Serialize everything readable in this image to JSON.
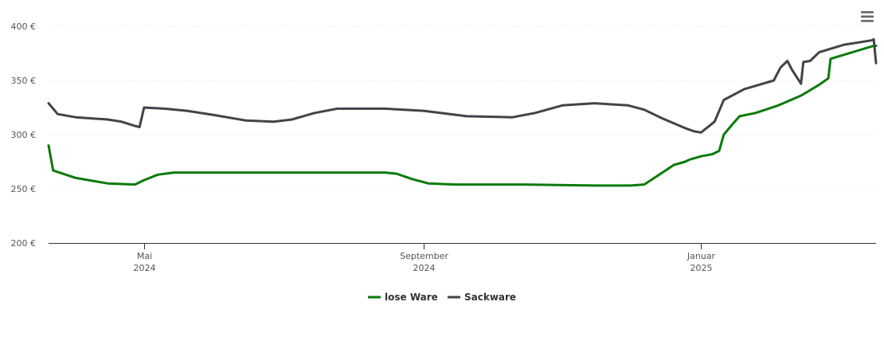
{
  "chart_data": {
    "type": "line",
    "title": "",
    "xlabel": "",
    "ylabel": "",
    "ylim": [
      200,
      400
    ],
    "y_ticks": [
      {
        "value": 200,
        "label": "200 €"
      },
      {
        "value": 250,
        "label": "250 €"
      },
      {
        "value": 300,
        "label": "300 €"
      },
      {
        "value": 350,
        "label": "350 €"
      },
      {
        "value": 400,
        "label": "400 €"
      }
    ],
    "x_range": [
      "2024-03-20",
      "2025-03-19"
    ],
    "x_ticks": [
      {
        "date": "2024-05-01",
        "line1": "Mai",
        "line2": "2024"
      },
      {
        "date": "2024-09-01",
        "line1": "September",
        "line2": "2024"
      },
      {
        "date": "2025-01-01",
        "line1": "Januar",
        "line2": "2025"
      }
    ],
    "grid": true,
    "legend_position": "bottom-center",
    "series": [
      {
        "name": "lose Ware",
        "color": "#0a7a0a",
        "points": [
          [
            "2024-03-20",
            290
          ],
          [
            "2024-03-22",
            267
          ],
          [
            "2024-04-01",
            260
          ],
          [
            "2024-04-15",
            255
          ],
          [
            "2024-04-27",
            254
          ],
          [
            "2024-05-01",
            258
          ],
          [
            "2024-05-07",
            263
          ],
          [
            "2024-05-14",
            265
          ],
          [
            "2024-06-15",
            265
          ],
          [
            "2024-07-15",
            265
          ],
          [
            "2024-08-15",
            265
          ],
          [
            "2024-08-20",
            264
          ],
          [
            "2024-08-27",
            259
          ],
          [
            "2024-09-03",
            255
          ],
          [
            "2024-09-15",
            254
          ],
          [
            "2024-10-15",
            254
          ],
          [
            "2024-11-15",
            253
          ],
          [
            "2024-12-01",
            253
          ],
          [
            "2024-12-07",
            254
          ],
          [
            "2024-12-15",
            265
          ],
          [
            "2024-12-20",
            272
          ],
          [
            "2024-12-25",
            275
          ],
          [
            "2024-12-27",
            277
          ],
          [
            "2025-01-01",
            280
          ],
          [
            "2025-01-06",
            282
          ],
          [
            "2025-01-09",
            285
          ],
          [
            "2025-01-11",
            300
          ],
          [
            "2025-01-15",
            310
          ],
          [
            "2025-01-18",
            317
          ],
          [
            "2025-01-25",
            320
          ],
          [
            "2025-02-04",
            327
          ],
          [
            "2025-02-14",
            336
          ],
          [
            "2025-02-22",
            346
          ],
          [
            "2025-02-26",
            352
          ],
          [
            "2025-02-27",
            370
          ],
          [
            "2025-03-18",
            382
          ],
          [
            "2025-03-19",
            382
          ]
        ]
      },
      {
        "name": "Sackware",
        "color": "#434348",
        "points": [
          [
            "2024-03-20",
            329
          ],
          [
            "2024-03-24",
            319
          ],
          [
            "2024-04-01",
            316
          ],
          [
            "2024-04-15",
            314
          ],
          [
            "2024-04-21",
            312
          ],
          [
            "2024-04-27",
            308
          ],
          [
            "2024-04-29",
            307
          ],
          [
            "2024-05-01",
            325
          ],
          [
            "2024-05-10",
            324
          ],
          [
            "2024-05-20",
            322
          ],
          [
            "2024-06-01",
            318
          ],
          [
            "2024-06-15",
            313
          ],
          [
            "2024-06-27",
            312
          ],
          [
            "2024-07-05",
            314
          ],
          [
            "2024-07-15",
            320
          ],
          [
            "2024-07-25",
            324
          ],
          [
            "2024-08-15",
            324
          ],
          [
            "2024-09-01",
            322
          ],
          [
            "2024-09-20",
            317
          ],
          [
            "2024-10-10",
            316
          ],
          [
            "2024-10-20",
            320
          ],
          [
            "2024-11-01",
            327
          ],
          [
            "2024-11-15",
            329
          ],
          [
            "2024-11-30",
            327
          ],
          [
            "2024-12-07",
            323
          ],
          [
            "2024-12-15",
            315
          ],
          [
            "2024-12-25",
            306
          ],
          [
            "2024-12-29",
            303
          ],
          [
            "2025-01-01",
            302
          ],
          [
            "2025-01-07",
            312
          ],
          [
            "2025-01-11",
            332
          ],
          [
            "2025-01-20",
            342
          ],
          [
            "2025-02-02",
            350
          ],
          [
            "2025-02-05",
            362
          ],
          [
            "2025-02-08",
            368
          ],
          [
            "2025-02-10",
            360
          ],
          [
            "2025-02-14",
            347
          ],
          [
            "2025-02-15",
            367
          ],
          [
            "2025-02-18",
            368
          ],
          [
            "2025-02-22",
            376
          ],
          [
            "2025-03-05",
            383
          ],
          [
            "2025-03-17",
            387
          ],
          [
            "2025-03-18",
            388
          ],
          [
            "2025-03-19",
            366
          ]
        ]
      }
    ]
  },
  "menu_icon": "hamburger-menu-icon"
}
